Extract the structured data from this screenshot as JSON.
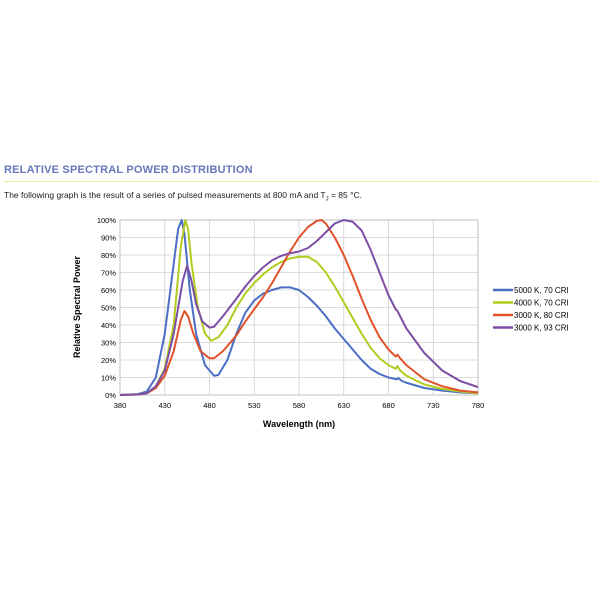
{
  "section": {
    "heading": "RELATIVE SPECTRAL POWER DISTRIBUTION",
    "intro_before": "The following graph is the result of a series of pulsed measurements at 800 mA and T",
    "intro_sub": "J",
    "intro_after": " = 85 °C."
  },
  "chart_data": {
    "type": "line",
    "title": "",
    "xlabel": "Wavelength (nm)",
    "ylabel": "Relative Spectral Power",
    "xlim": [
      380,
      780
    ],
    "ylim": [
      0,
      100
    ],
    "grid": true,
    "legend": "right",
    "xticks": [
      "380",
      "430",
      "480",
      "530",
      "580",
      "630",
      "680",
      "730",
      "780"
    ],
    "yticks": [
      "0%",
      "10%",
      "20%",
      "30%",
      "40%",
      "50%",
      "60%",
      "70%",
      "80%",
      "90%",
      "100%"
    ],
    "series": [
      {
        "name": "5000 K, 70 CRI",
        "color": "#4a6fc4",
        "points": [
          [
            380,
            0
          ],
          [
            400,
            0.5
          ],
          [
            410,
            2
          ],
          [
            420,
            10
          ],
          [
            430,
            35
          ],
          [
            440,
            75
          ],
          [
            445,
            95
          ],
          [
            449,
            100
          ],
          [
            452,
            92
          ],
          [
            458,
            60
          ],
          [
            465,
            35
          ],
          [
            475,
            17
          ],
          [
            485,
            11
          ],
          [
            490,
            11.5
          ],
          [
            500,
            20
          ],
          [
            510,
            35
          ],
          [
            520,
            47
          ],
          [
            530,
            54
          ],
          [
            540,
            58
          ],
          [
            550,
            60
          ],
          [
            560,
            61.5
          ],
          [
            570,
            61.5
          ],
          [
            580,
            60
          ],
          [
            590,
            56
          ],
          [
            600,
            51
          ],
          [
            610,
            45
          ],
          [
            620,
            38
          ],
          [
            630,
            32
          ],
          [
            640,
            26
          ],
          [
            650,
            20
          ],
          [
            660,
            15
          ],
          [
            670,
            12
          ],
          [
            680,
            10
          ],
          [
            689,
            9
          ],
          [
            691,
            9.6
          ],
          [
            695,
            8
          ],
          [
            700,
            7
          ],
          [
            720,
            4
          ],
          [
            740,
            2.5
          ],
          [
            760,
            1.5
          ],
          [
            780,
            1
          ]
        ]
      },
      {
        "name": "4000 K, 70 CRI",
        "color": "#b2cc1e",
        "points": [
          [
            380,
            0
          ],
          [
            400,
            0.3
          ],
          [
            410,
            1
          ],
          [
            420,
            5
          ],
          [
            430,
            15
          ],
          [
            440,
            40
          ],
          [
            448,
            85
          ],
          [
            453,
            100
          ],
          [
            456,
            95
          ],
          [
            460,
            75
          ],
          [
            467,
            50
          ],
          [
            475,
            35
          ],
          [
            482,
            31
          ],
          [
            490,
            33
          ],
          [
            500,
            40
          ],
          [
            510,
            50
          ],
          [
            520,
            58
          ],
          [
            530,
            64
          ],
          [
            540,
            69
          ],
          [
            550,
            73
          ],
          [
            560,
            76
          ],
          [
            570,
            78
          ],
          [
            580,
            79
          ],
          [
            590,
            79
          ],
          [
            600,
            76
          ],
          [
            610,
            70
          ],
          [
            620,
            62
          ],
          [
            630,
            53
          ],
          [
            640,
            44
          ],
          [
            650,
            35
          ],
          [
            660,
            27
          ],
          [
            670,
            21
          ],
          [
            680,
            17
          ],
          [
            688,
            15
          ],
          [
            690,
            16.5
          ],
          [
            693,
            14
          ],
          [
            700,
            11
          ],
          [
            720,
            6
          ],
          [
            740,
            3.5
          ],
          [
            760,
            2
          ],
          [
            780,
            1
          ]
        ]
      },
      {
        "name": "3000 K, 80 CRI",
        "color": "#e0522a",
        "points": [
          [
            380,
            0
          ],
          [
            400,
            0.3
          ],
          [
            410,
            1
          ],
          [
            420,
            4
          ],
          [
            430,
            11
          ],
          [
            440,
            25
          ],
          [
            448,
            43
          ],
          [
            452,
            48
          ],
          [
            456,
            45
          ],
          [
            462,
            35
          ],
          [
            470,
            25
          ],
          [
            480,
            21
          ],
          [
            485,
            21
          ],
          [
            495,
            25
          ],
          [
            510,
            34
          ],
          [
            520,
            42
          ],
          [
            530,
            49
          ],
          [
            540,
            56
          ],
          [
            550,
            64
          ],
          [
            560,
            73
          ],
          [
            570,
            82
          ],
          [
            580,
            90
          ],
          [
            590,
            96
          ],
          [
            600,
            99.5
          ],
          [
            605,
            100
          ],
          [
            610,
            98
          ],
          [
            620,
            90
          ],
          [
            630,
            80
          ],
          [
            640,
            68
          ],
          [
            650,
            55
          ],
          [
            660,
            43
          ],
          [
            670,
            33
          ],
          [
            680,
            26
          ],
          [
            688,
            22
          ],
          [
            690,
            23
          ],
          [
            693,
            21
          ],
          [
            700,
            17
          ],
          [
            720,
            9
          ],
          [
            740,
            5
          ],
          [
            760,
            2.5
          ],
          [
            780,
            1.5
          ]
        ]
      },
      {
        "name": "3000 K, 93 CRI",
        "color": "#7b4fa6",
        "points": [
          [
            380,
            0
          ],
          [
            400,
            0.3
          ],
          [
            410,
            1
          ],
          [
            420,
            5
          ],
          [
            430,
            14
          ],
          [
            440,
            35
          ],
          [
            450,
            65
          ],
          [
            455,
            74
          ],
          [
            460,
            65
          ],
          [
            465,
            52
          ],
          [
            472,
            42
          ],
          [
            480,
            38.5
          ],
          [
            485,
            39
          ],
          [
            495,
            45
          ],
          [
            510,
            55
          ],
          [
            520,
            62
          ],
          [
            530,
            68
          ],
          [
            540,
            73
          ],
          [
            550,
            77
          ],
          [
            560,
            79.5
          ],
          [
            570,
            81
          ],
          [
            580,
            82
          ],
          [
            590,
            84
          ],
          [
            600,
            88
          ],
          [
            610,
            93
          ],
          [
            620,
            98
          ],
          [
            630,
            100
          ],
          [
            640,
            99
          ],
          [
            650,
            94
          ],
          [
            660,
            83
          ],
          [
            670,
            70
          ],
          [
            680,
            57
          ],
          [
            688,
            49
          ],
          [
            690,
            48
          ],
          [
            693,
            45
          ],
          [
            700,
            38
          ],
          [
            720,
            24
          ],
          [
            740,
            14
          ],
          [
            760,
            8
          ],
          [
            780,
            4.5
          ]
        ]
      }
    ]
  }
}
